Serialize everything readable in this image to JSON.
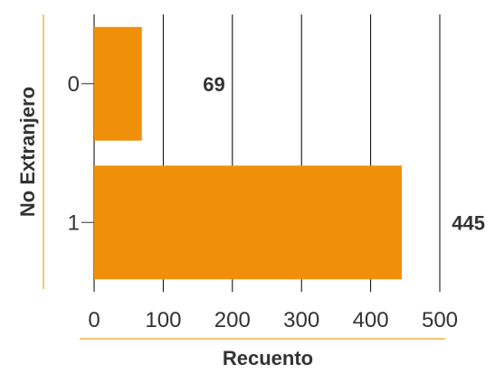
{
  "chart_data": {
    "type": "bar",
    "orientation": "horizontal",
    "categories": [
      "0",
      "1"
    ],
    "values": [
      69,
      445
    ],
    "data_labels": [
      "69",
      "445"
    ],
    "xlabel": "Recuento",
    "ylabel": "No Extranjero",
    "xlim": [
      0,
      500
    ],
    "xticks": [
      0,
      100,
      200,
      300,
      400,
      500
    ],
    "grid": "vertical",
    "legend": "none",
    "colors": {
      "bar": "#F0900A",
      "accent_line": "#F5B04A",
      "grid": "#000000",
      "text": "#333333"
    }
  }
}
